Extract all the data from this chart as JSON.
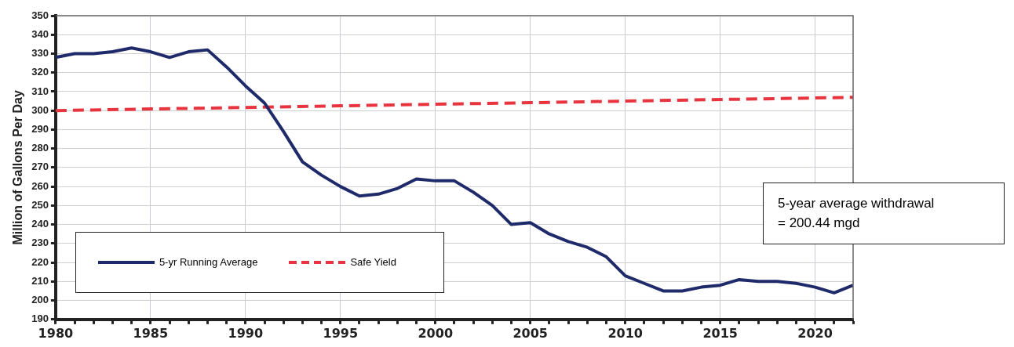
{
  "chart_data": {
    "type": "line",
    "ylabel": "Million of Gallons Per Day",
    "xlim": [
      1980,
      2022
    ],
    "xticks": [
      1980,
      1985,
      1990,
      1995,
      2000,
      2005,
      2010,
      2015,
      2020
    ],
    "ylim": [
      190,
      350
    ],
    "yticks": [
      190,
      200,
      210,
      220,
      230,
      240,
      250,
      260,
      270,
      280,
      290,
      300,
      310,
      320,
      330,
      340,
      350
    ],
    "grid": true,
    "legend": "bottom left",
    "line_style": "solid",
    "marker": "none",
    "series": [
      {
        "name": "5-yr Running Average",
        "color": "#1f2a6b",
        "x": [
          1980,
          1981,
          1982,
          1983,
          1984,
          1985,
          1986,
          1987,
          1988,
          1989,
          1990,
          1991,
          1992,
          1993,
          1994,
          1995,
          1996,
          1997,
          1998,
          1999,
          2000,
          2001,
          2002,
          2003,
          2004,
          2005,
          2006,
          2007,
          2008,
          2009,
          2010,
          2011,
          2012,
          2013,
          2014,
          2015,
          2016,
          2017,
          2018,
          2019,
          2020,
          2021,
          2022
        ],
        "values": [
          328,
          330,
          330,
          331,
          333,
          331,
          328,
          331,
          332,
          323,
          313,
          304,
          289,
          273,
          266,
          260,
          255,
          256,
          259,
          264,
          263,
          263,
          257,
          250,
          240,
          241,
          235,
          231,
          228,
          223,
          213,
          209,
          205,
          205,
          207,
          208,
          211,
          210,
          210,
          209,
          207,
          204,
          208
        ]
      },
      {
        "name": "Safe Yield",
        "color": "#e8343f",
        "line_style": "dashed",
        "x": [
          1980,
          2022
        ],
        "values": [
          300,
          307
        ]
      }
    ],
    "annotations": [
      "5-year average withdrawal\n= 200.44 mgd"
    ]
  }
}
